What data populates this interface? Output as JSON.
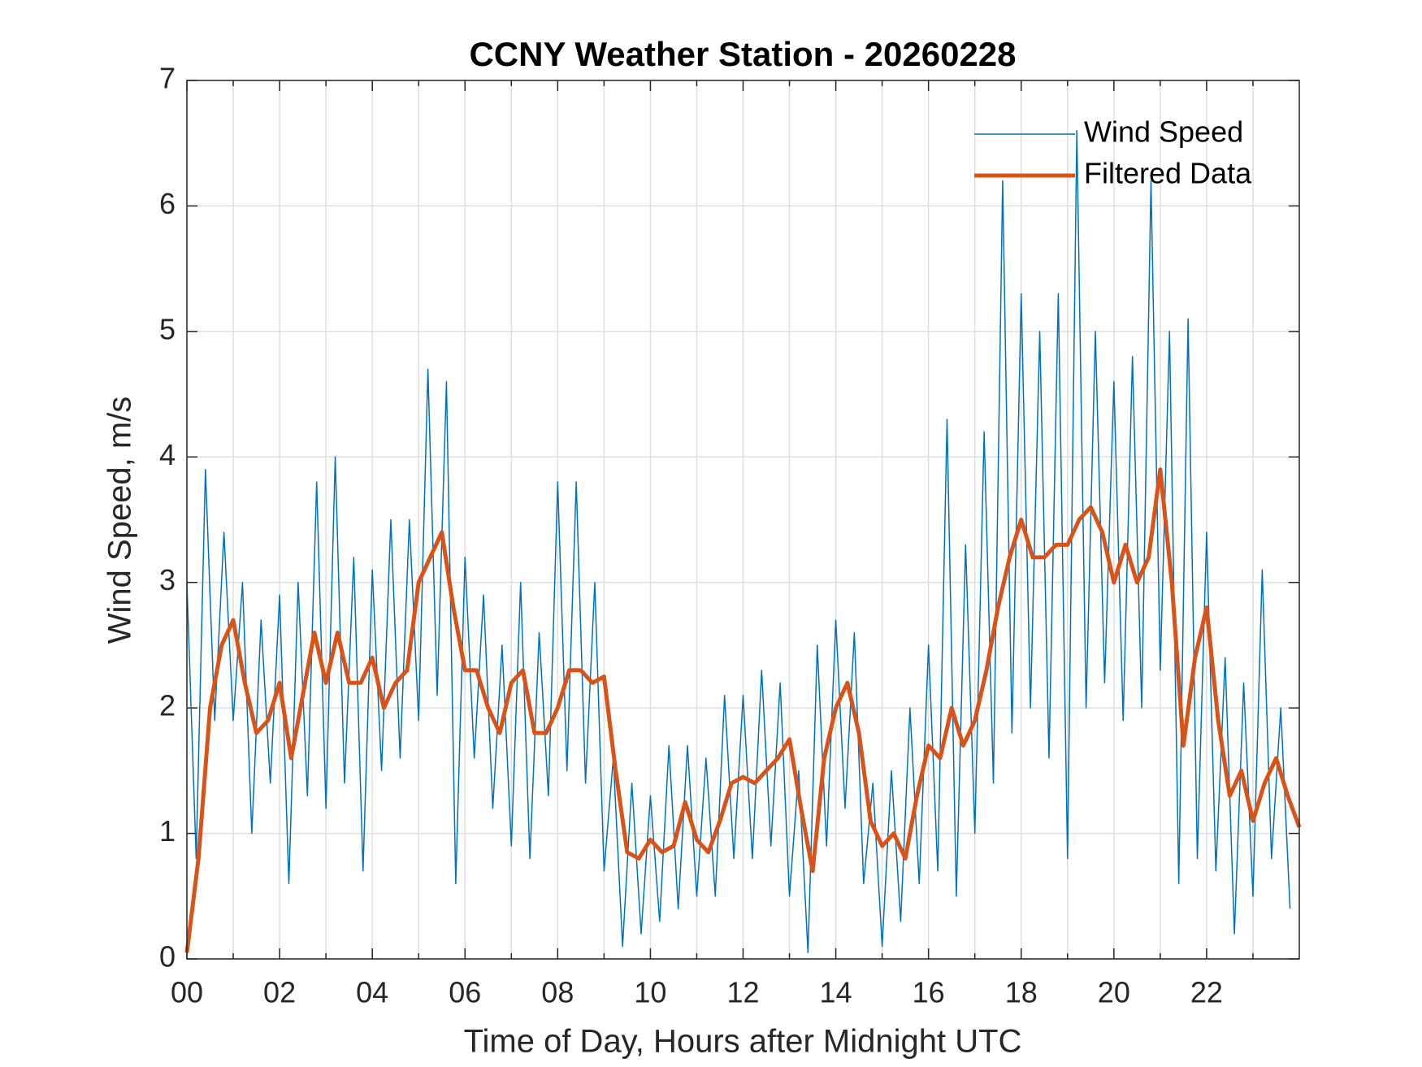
{
  "chart_data": {
    "type": "line",
    "title": "CCNY Weather Station - 20260228",
    "xlabel": "Time of Day, Hours after Midnight UTC",
    "ylabel": "Wind Speed, m/s",
    "xlim": [
      0,
      24
    ],
    "ylim": [
      0,
      7
    ],
    "xticks": [
      {
        "value": 0,
        "label": "00"
      },
      {
        "value": 2,
        "label": "02"
      },
      {
        "value": 4,
        "label": "04"
      },
      {
        "value": 6,
        "label": "06"
      },
      {
        "value": 8,
        "label": "08"
      },
      {
        "value": 10,
        "label": "10"
      },
      {
        "value": 12,
        "label": "12"
      },
      {
        "value": 14,
        "label": "14"
      },
      {
        "value": 16,
        "label": "16"
      },
      {
        "value": 18,
        "label": "18"
      },
      {
        "value": 20,
        "label": "20"
      },
      {
        "value": 22,
        "label": "22"
      }
    ],
    "xminorticks": [
      1,
      3,
      5,
      7,
      9,
      11,
      13,
      15,
      17,
      19,
      21,
      23
    ],
    "yticks": [
      0,
      1,
      2,
      3,
      4,
      5,
      6,
      7
    ],
    "grid": true,
    "legend": "upper right",
    "series": [
      {
        "name": "Wind Speed",
        "color": "#0072bd",
        "width": 1.5,
        "x": [
          0,
          0.2,
          0.4,
          0.6,
          0.8,
          1,
          1.2,
          1.4,
          1.6,
          1.8,
          2,
          2.2,
          2.4,
          2.6,
          2.8,
          3,
          3.2,
          3.4,
          3.6,
          3.8,
          4,
          4.2,
          4.4,
          4.6,
          4.8,
          5,
          5.2,
          5.4,
          5.6,
          5.8,
          6,
          6.2,
          6.4,
          6.6,
          6.8,
          7,
          7.2,
          7.4,
          7.6,
          7.8,
          8,
          8.2,
          8.4,
          8.6,
          8.8,
          9,
          9.2,
          9.4,
          9.6,
          9.8,
          10,
          10.2,
          10.4,
          10.6,
          10.8,
          11,
          11.2,
          11.4,
          11.6,
          11.8,
          12,
          12.2,
          12.4,
          12.6,
          12.8,
          13,
          13.2,
          13.4,
          13.6,
          13.8,
          14,
          14.2,
          14.4,
          14.6,
          14.8,
          15,
          15.2,
          15.4,
          15.6,
          15.8,
          16,
          16.2,
          16.4,
          16.6,
          16.8,
          17,
          17.2,
          17.4,
          17.6,
          17.8,
          18,
          18.2,
          18.4,
          18.6,
          18.8,
          19,
          19.2,
          19.4,
          19.6,
          19.8,
          20,
          20.2,
          20.4,
          20.6,
          20.8,
          21,
          21.2,
          21.4,
          21.6,
          21.8,
          22,
          22.2,
          22.4,
          22.6,
          22.8,
          23,
          23.2,
          23.4,
          23.6,
          23.8
        ],
        "values": [
          3.0,
          0.8,
          3.9,
          1.9,
          3.4,
          1.9,
          3.0,
          1.0,
          2.7,
          1.4,
          2.9,
          0.6,
          3.0,
          1.3,
          3.8,
          1.2,
          4.0,
          1.4,
          3.2,
          0.7,
          3.1,
          1.5,
          3.5,
          1.6,
          3.5,
          1.9,
          4.7,
          2.1,
          4.6,
          0.6,
          3.2,
          1.6,
          2.9,
          1.2,
          2.5,
          0.9,
          3.0,
          0.8,
          2.6,
          1.3,
          3.8,
          1.5,
          3.8,
          1.4,
          3.0,
          0.7,
          1.6,
          0.1,
          1.4,
          0.2,
          1.3,
          0.3,
          1.7,
          0.4,
          1.7,
          0.5,
          1.6,
          0.5,
          2.1,
          0.8,
          2.1,
          0.8,
          2.3,
          0.9,
          2.2,
          0.5,
          1.5,
          0.05,
          2.5,
          0.9,
          2.7,
          1.2,
          2.6,
          0.6,
          1.4,
          0.1,
          1.5,
          0.3,
          2.0,
          0.6,
          2.5,
          0.7,
          4.3,
          0.5,
          3.3,
          1.0,
          4.2,
          1.4,
          6.2,
          1.8,
          5.3,
          2.0,
          5.0,
          1.6,
          5.3,
          0.8,
          6.6,
          2.0,
          5.0,
          2.2,
          4.6,
          1.9,
          4.8,
          2.0,
          6.2,
          2.3,
          5.0,
          0.6,
          5.1,
          0.8,
          3.4,
          0.7,
          2.4,
          0.2,
          2.2,
          0.5,
          3.1,
          0.8,
          2.0,
          0.4
        ]
      },
      {
        "name": "Filtered Data",
        "color": "#d95319",
        "width": 5,
        "x": [
          0,
          0.25,
          0.5,
          0.75,
          1,
          1.25,
          1.5,
          1.75,
          2,
          2.25,
          2.5,
          2.75,
          3,
          3.25,
          3.5,
          3.75,
          4,
          4.25,
          4.5,
          4.75,
          5,
          5.25,
          5.5,
          5.75,
          6,
          6.25,
          6.5,
          6.75,
          7,
          7.25,
          7.5,
          7.75,
          8,
          8.25,
          8.5,
          8.75,
          9,
          9.25,
          9.5,
          9.75,
          10,
          10.25,
          10.5,
          10.75,
          11,
          11.25,
          11.5,
          11.75,
          12,
          12.25,
          12.5,
          12.75,
          13,
          13.25,
          13.5,
          13.75,
          14,
          14.25,
          14.5,
          14.75,
          15,
          15.25,
          15.5,
          15.75,
          16,
          16.25,
          16.5,
          16.75,
          17,
          17.25,
          17.5,
          17.75,
          18,
          18.25,
          18.5,
          18.75,
          19,
          19.25,
          19.5,
          19.75,
          20,
          20.25,
          20.5,
          20.75,
          21,
          21.25,
          21.5,
          21.75,
          22,
          22.25,
          22.5,
          22.75,
          23,
          23.25,
          23.5,
          23.75,
          24
        ],
        "values": [
          0.05,
          0.8,
          2.0,
          2.5,
          2.7,
          2.2,
          1.8,
          1.9,
          2.2,
          1.6,
          2.1,
          2.6,
          2.2,
          2.6,
          2.2,
          2.2,
          2.4,
          2.0,
          2.2,
          2.3,
          3.0,
          3.2,
          3.4,
          2.8,
          2.3,
          2.3,
          2.0,
          1.8,
          2.2,
          2.3,
          1.8,
          1.8,
          2.0,
          2.3,
          2.3,
          2.2,
          2.25,
          1.5,
          0.85,
          0.8,
          0.95,
          0.85,
          0.9,
          1.25,
          0.95,
          0.85,
          1.1,
          1.4,
          1.45,
          1.4,
          1.5,
          1.6,
          1.75,
          1.2,
          0.7,
          1.6,
          2.0,
          2.2,
          1.8,
          1.1,
          0.9,
          1.0,
          0.8,
          1.3,
          1.7,
          1.6,
          2.0,
          1.7,
          1.9,
          2.3,
          2.8,
          3.2,
          3.5,
          3.2,
          3.2,
          3.3,
          3.3,
          3.5,
          3.6,
          3.4,
          3.0,
          3.3,
          3.0,
          3.2,
          3.9,
          3.0,
          1.7,
          2.4,
          2.8,
          1.9,
          1.3,
          1.5,
          1.1,
          1.4,
          1.6,
          1.3,
          1.05
        ]
      }
    ]
  }
}
